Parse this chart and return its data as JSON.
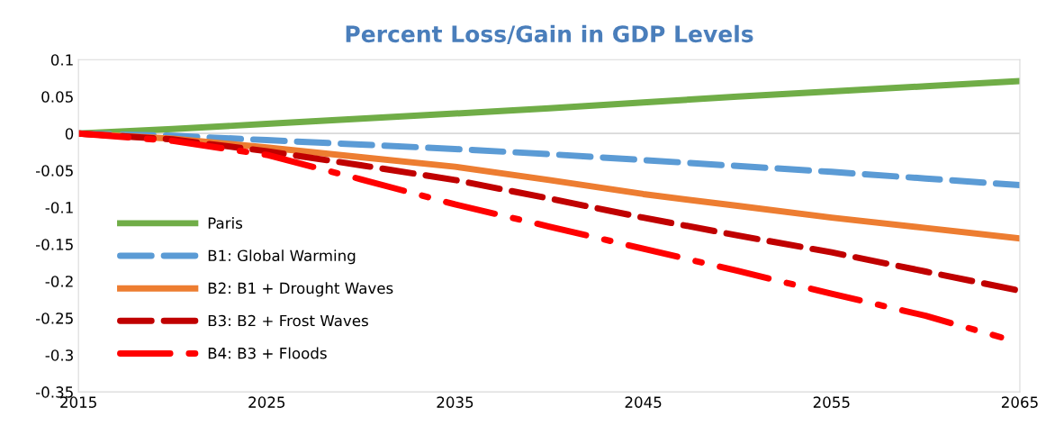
{
  "chart_data": {
    "type": "line",
    "title": "Percent Loss/Gain in GDP Levels",
    "x": [
      2015,
      2020,
      2025,
      2030,
      2035,
      2040,
      2045,
      2050,
      2055,
      2060,
      2065
    ],
    "series": [
      {
        "name": "Paris",
        "color": "#70ad47",
        "line_style": "solid",
        "values": [
          0,
          0.006,
          0.013,
          0.02,
          0.027,
          0.034,
          0.042,
          0.05,
          0.057,
          0.064,
          0.071
        ]
      },
      {
        "name": "B1: Global Warming",
        "color": "#5b9bd5",
        "line_style": "dashed",
        "values": [
          0,
          -0.003,
          -0.009,
          -0.015,
          -0.021,
          -0.028,
          -0.036,
          -0.044,
          -0.052,
          -0.061,
          -0.07
        ]
      },
      {
        "name": "B2: B1 + Drought Waves",
        "color": "#ed7d31",
        "line_style": "solid",
        "values": [
          0,
          -0.007,
          -0.019,
          -0.032,
          -0.045,
          -0.063,
          -0.082,
          -0.098,
          -0.114,
          -0.128,
          -0.142
        ]
      },
      {
        "name": "B3: B2 + Frost Waves",
        "color": "#c00000",
        "line_style": "dashed",
        "values": [
          0,
          -0.008,
          -0.024,
          -0.043,
          -0.063,
          -0.088,
          -0.114,
          -0.138,
          -0.161,
          -0.187,
          -0.213
        ]
      },
      {
        "name": "B4: B3 + Floods",
        "color": "#ff0000",
        "line_style": "dashdot",
        "x": [
          2015,
          2020,
          2025,
          2030,
          2035,
          2040,
          2045,
          2050,
          2055,
          2060,
          2064
        ],
        "values": [
          0,
          -0.01,
          -0.029,
          -0.062,
          -0.096,
          -0.126,
          -0.156,
          -0.186,
          -0.217,
          -0.247,
          -0.276
        ]
      }
    ],
    "xlim": [
      2015,
      2065
    ],
    "xticks": [
      2015,
      2025,
      2035,
      2045,
      2055,
      2065
    ],
    "ylim": [
      -0.35,
      0.1
    ],
    "yticks": [
      -0.35,
      -0.3,
      -0.25,
      -0.2,
      -0.15,
      -0.1,
      -0.05,
      0,
      0.05,
      0.1
    ],
    "ref_lines": [
      {
        "axis": "y",
        "value": 0,
        "color": "#d9d9d9"
      }
    ],
    "grid": false,
    "legend": "lower left"
  }
}
